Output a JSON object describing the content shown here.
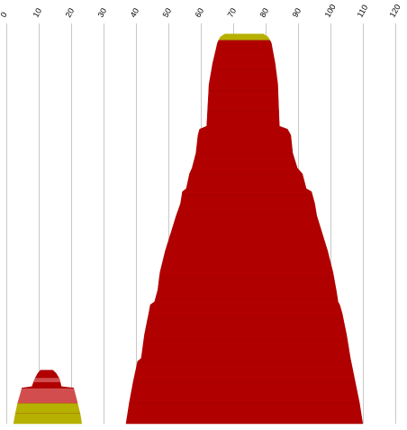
{
  "chart_data": {
    "type": "area",
    "orientation": "vertical-mirrored",
    "x_axis": {
      "position": "top",
      "ticks": [
        "0",
        "10",
        "20",
        "30",
        "40",
        "50",
        "60",
        "70",
        "80",
        "90",
        "100",
        "110",
        "120"
      ],
      "tick_values": [
        0,
        10,
        20,
        30,
        40,
        50,
        60,
        70,
        80,
        90,
        100,
        110,
        120
      ],
      "xlim": [
        0,
        120
      ],
      "label_rotation": "-60deg",
      "grid": true
    },
    "title": "",
    "xlabel": "",
    "ylabel": "",
    "legend": "none",
    "shapes": [
      {
        "name": "",
        "outline": [
          {
            "y": 0.0,
            "left": 36.8,
            "right": 109.8
          },
          {
            "y": 0.07,
            "left": 37.8,
            "right": 108.8
          },
          {
            "y": 0.14,
            "left": 39.0,
            "right": 107.5
          },
          {
            "y": 0.21,
            "left": 40.4,
            "right": 106.2
          },
          {
            "y": 0.22,
            "left": 41.5,
            "right": 106.0
          },
          {
            "y": 0.3,
            "left": 42.5,
            "right": 104.8
          },
          {
            "y": 0.37,
            "left": 43.8,
            "right": 103.5
          },
          {
            "y": 0.4,
            "left": 44.3,
            "right": 102.7
          },
          {
            "y": 0.41,
            "left": 45.6,
            "right": 102.2
          },
          {
            "y": 0.45,
            "left": 46.6,
            "right": 101.6
          },
          {
            "y": 0.51,
            "left": 47.3,
            "right": 100.6
          },
          {
            "y": 0.58,
            "left": 48.9,
            "right": 99.0
          },
          {
            "y": 0.64,
            "left": 50.6,
            "right": 97.3
          },
          {
            "y": 0.7,
            "left": 52.3,
            "right": 95.6
          },
          {
            "y": 0.74,
            "left": 53.6,
            "right": 95.0
          },
          {
            "y": 0.78,
            "left": 54.2,
            "right": 94.0
          },
          {
            "y": 0.79,
            "left": 55.4,
            "right": 92.4
          },
          {
            "y": 0.84,
            "left": 56.4,
            "right": 91.2
          },
          {
            "y": 0.86,
            "left": 57.2,
            "right": 89.6
          },
          {
            "y": 0.91,
            "left": 58.4,
            "right": 88.2
          },
          {
            "y": 0.97,
            "left": 59.0,
            "right": 87.6
          },
          {
            "y": 0.99,
            "left": 59.5,
            "right": 86.6
          },
          {
            "y": 1.0,
            "left": 61.7,
            "right": 84.1
          },
          {
            "y": 1.14,
            "left": 62.4,
            "right": 83.6
          },
          {
            "y": 1.21,
            "left": 63.5,
            "right": 82.8
          },
          {
            "y": 1.28,
            "left": 65.0,
            "right": 81.6
          },
          {
            "y": 1.3,
            "left": 65.9,
            "right": 80.6
          },
          {
            "y": 1.31,
            "left": 67.3,
            "right": 79.2
          }
        ],
        "bands": [
          {
            "from": 0.0,
            "to": 0.07,
            "color": "#B00000"
          },
          {
            "from": 0.07,
            "to": 0.14,
            "color": "#B00000"
          },
          {
            "from": 0.14,
            "to": 0.21,
            "color": "#B00000"
          },
          {
            "from": 0.21,
            "to": 0.28,
            "color": "#B00000"
          },
          {
            "from": 0.28,
            "to": 0.35,
            "color": "#B00000"
          },
          {
            "from": 0.35,
            "to": 0.42,
            "color": "#B00000"
          },
          {
            "from": 0.42,
            "to": 0.49,
            "color": "#B00000"
          },
          {
            "from": 0.49,
            "to": 0.56,
            "color": "#B00000"
          },
          {
            "from": 0.56,
            "to": 0.63,
            "color": "#B00000"
          },
          {
            "from": 0.63,
            "to": 0.7,
            "color": "#B00000"
          },
          {
            "from": 0.7,
            "to": 0.77,
            "color": "#B00000"
          },
          {
            "from": 0.77,
            "to": 0.84,
            "color": "#B00000"
          },
          {
            "from": 0.84,
            "to": 0.91,
            "color": "#B00000"
          },
          {
            "from": 0.91,
            "to": 0.98,
            "color": "#B00000"
          },
          {
            "from": 0.98,
            "to": 1.05,
            "color": "#B00000"
          },
          {
            "from": 1.05,
            "to": 1.12,
            "color": "#B00000"
          },
          {
            "from": 1.12,
            "to": 1.19,
            "color": "#B00000"
          },
          {
            "from": 1.19,
            "to": 1.26,
            "color": "#B00000"
          },
          {
            "from": 1.26,
            "to": 1.29,
            "color": "#B00000"
          },
          {
            "from": 1.29,
            "to": 1.31,
            "color": "#B6B000"
          }
        ]
      },
      {
        "name": "",
        "outline": [
          {
            "y": 0.0,
            "left": 2.1,
            "right": 23.1
          },
          {
            "y": 0.03,
            "left": 2.6,
            "right": 22.7
          },
          {
            "y": 0.07,
            "left": 3.4,
            "right": 21.8
          },
          {
            "y": 0.1,
            "left": 4.2,
            "right": 21.1
          },
          {
            "y": 0.12,
            "left": 4.7,
            "right": 20.6
          },
          {
            "y": 0.125,
            "left": 7.8,
            "right": 16.8
          },
          {
            "y": 0.15,
            "left": 8.6,
            "right": 16.3
          },
          {
            "y": 0.17,
            "left": 9.6,
            "right": 15.2
          },
          {
            "y": 0.18,
            "left": 10.4,
            "right": 14.2
          }
        ],
        "bands": [
          {
            "from": 0.0,
            "to": 0.035,
            "color": "#B6B000"
          },
          {
            "from": 0.035,
            "to": 0.07,
            "color": "#B6B000"
          },
          {
            "from": 0.07,
            "to": 0.12,
            "color": "#D24E4E"
          },
          {
            "from": 0.12,
            "to": 0.14,
            "color": "#B00000"
          },
          {
            "from": 0.14,
            "to": 0.155,
            "color": "#D24E4E"
          },
          {
            "from": 0.155,
            "to": 0.18,
            "color": "#B00000"
          }
        ]
      }
    ],
    "colors": {
      "dark_red": "#B00000",
      "light_red": "#D24E4E",
      "olive": "#B6B000",
      "grid": "#C8C8C8",
      "band_line": "#7A0000"
    }
  }
}
